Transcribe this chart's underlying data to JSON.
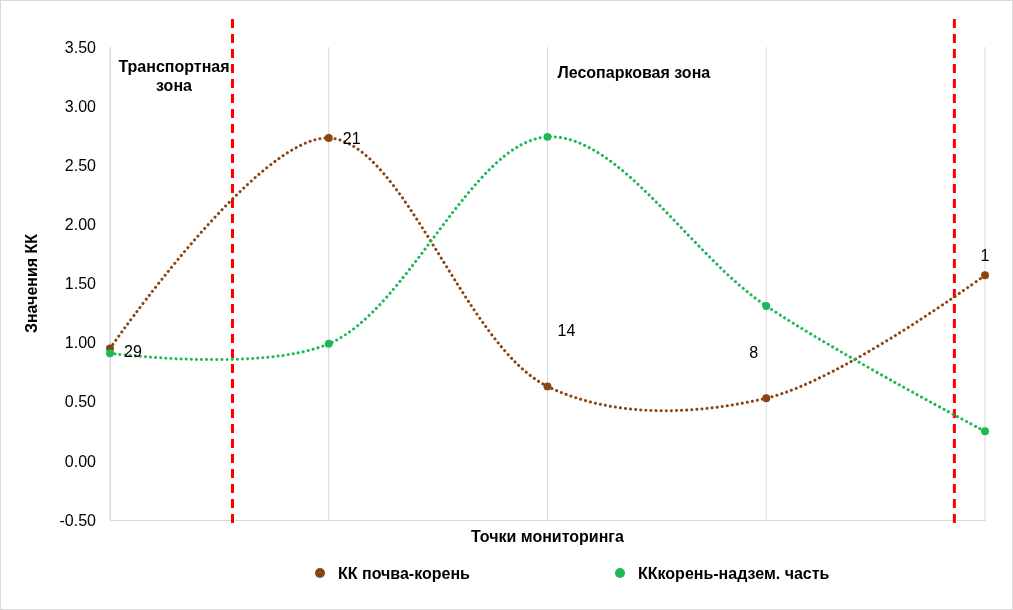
{
  "chart_data": {
    "type": "line",
    "xlabel": "Точки мониторинга",
    "ylabel": "Значения КК",
    "categories": [
      null,
      null,
      null,
      null,
      null
    ],
    "series": [
      {
        "name": "КК почва-корень",
        "color": "#8b4513",
        "values": [
          0.95,
          2.73,
          0.63,
          0.53,
          1.57
        ]
      },
      {
        "name": "ККкорень-надзем. часть",
        "color": "#1db954",
        "values": [
          0.91,
          0.99,
          2.74,
          1.31,
          0.25
        ]
      }
    ],
    "ylim": [
      -0.5,
      3.5
    ],
    "yticks": [
      {
        "value": -0.5,
        "label": "-0.50"
      },
      {
        "value": 0,
        "label": "0.00"
      },
      {
        "value": 0.5,
        "label": "0.50"
      },
      {
        "value": 1,
        "label": "1.00"
      },
      {
        "value": 1.5,
        "label": "1.50"
      },
      {
        "value": 2,
        "label": "2.00"
      },
      {
        "value": 2.5,
        "label": "2.50"
      },
      {
        "value": 3,
        "label": "3.00"
      },
      {
        "value": 3.5,
        "label": "3.50"
      }
    ],
    "annotations": [
      "29",
      "21",
      "14",
      "8",
      "1",
      "Транспортная\nзона",
      "Лесопарковая зона"
    ],
    "grid": "x",
    "legend": "bottom",
    "marker": "circle",
    "line_style": "dotted"
  }
}
